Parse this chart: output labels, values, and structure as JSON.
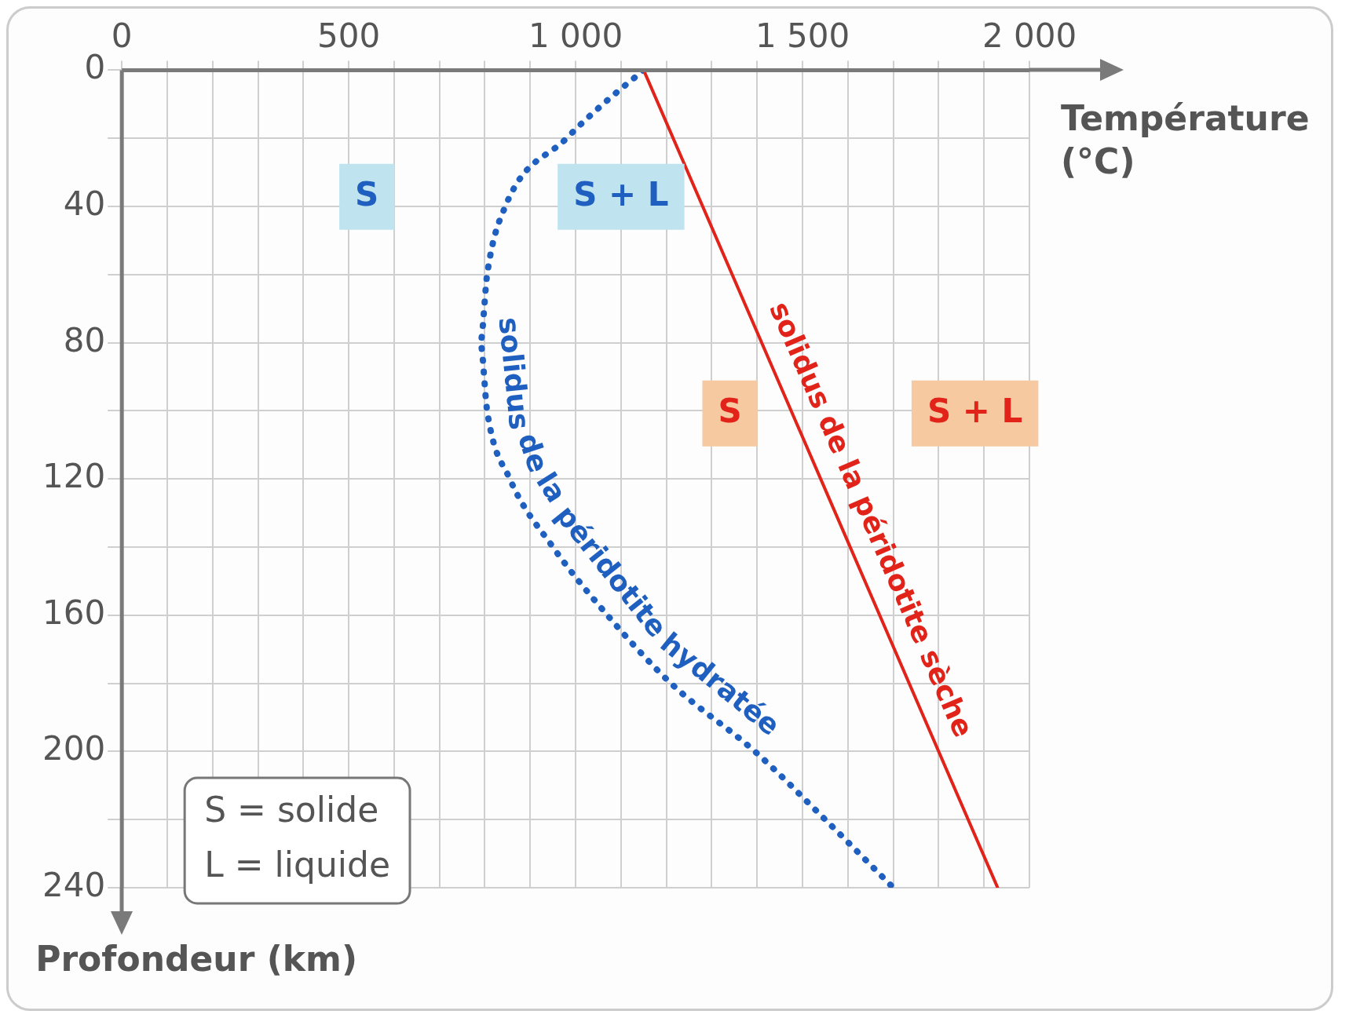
{
  "chart_data": {
    "type": "line",
    "xlabel": "Température (°C)",
    "ylabel": "Profondeur (km)",
    "xlim": [
      0,
      2000
    ],
    "ylim": [
      240,
      0
    ],
    "xticks": [
      0,
      {
        "value": 100,
        "label": null
      },
      {
        "value": 200,
        "label": null
      },
      {
        "value": 300,
        "label": null
      },
      {
        "value": 400,
        "label": null
      },
      500,
      {
        "value": 600,
        "label": null
      },
      {
        "value": 700,
        "label": null
      },
      {
        "value": 800,
        "label": null
      },
      {
        "value": 900,
        "label": null
      },
      {
        "value": 1000,
        "label": "1 000"
      },
      {
        "value": 1100,
        "label": null
      },
      {
        "value": 1200,
        "label": null
      },
      {
        "value": 1300,
        "label": null
      },
      {
        "value": 1400,
        "label": null
      },
      {
        "value": 1500,
        "label": "1 500"
      },
      {
        "value": 1600,
        "label": null
      },
      {
        "value": 1700,
        "label": null
      },
      {
        "value": 1800,
        "label": null
      },
      {
        "value": 1900,
        "label": null
      },
      {
        "value": 2000,
        "label": "2 000"
      }
    ],
    "yticks": [
      0,
      {
        "value": 20,
        "label": null
      },
      40,
      {
        "value": 60,
        "label": null
      },
      80,
      {
        "value": 100,
        "label": null
      },
      120,
      {
        "value": 140,
        "label": null
      },
      160,
      {
        "value": 180,
        "label": null
      },
      200,
      {
        "value": 220,
        "label": null
      },
      240
    ],
    "grid": true,
    "legend": false,
    "marker": "none",
    "series": [
      {
        "name": "solidus de la péridotite sèche",
        "color": "#e2231a",
        "line_style": "solid",
        "x": [
          1150,
          1930
        ],
        "values": [
          0,
          240
        ]
      },
      {
        "name": "solidus de la péridotite hydratée",
        "color": "#1f5fbf",
        "line_style": "dotted",
        "x": [
          1150,
          1060,
          980,
          845,
          805,
          790,
          805,
          855,
          950,
          1070,
          1210,
          1395,
          1550,
          1700
        ],
        "values": [
          0,
          10,
          20,
          40,
          60,
          80,
          100,
          120,
          140,
          160,
          180,
          200,
          220,
          240
        ]
      }
    ],
    "annotations": [
      "S",
      "S + L",
      "S",
      "S + L",
      "S = solide",
      "L = liquide"
    ]
  }
}
